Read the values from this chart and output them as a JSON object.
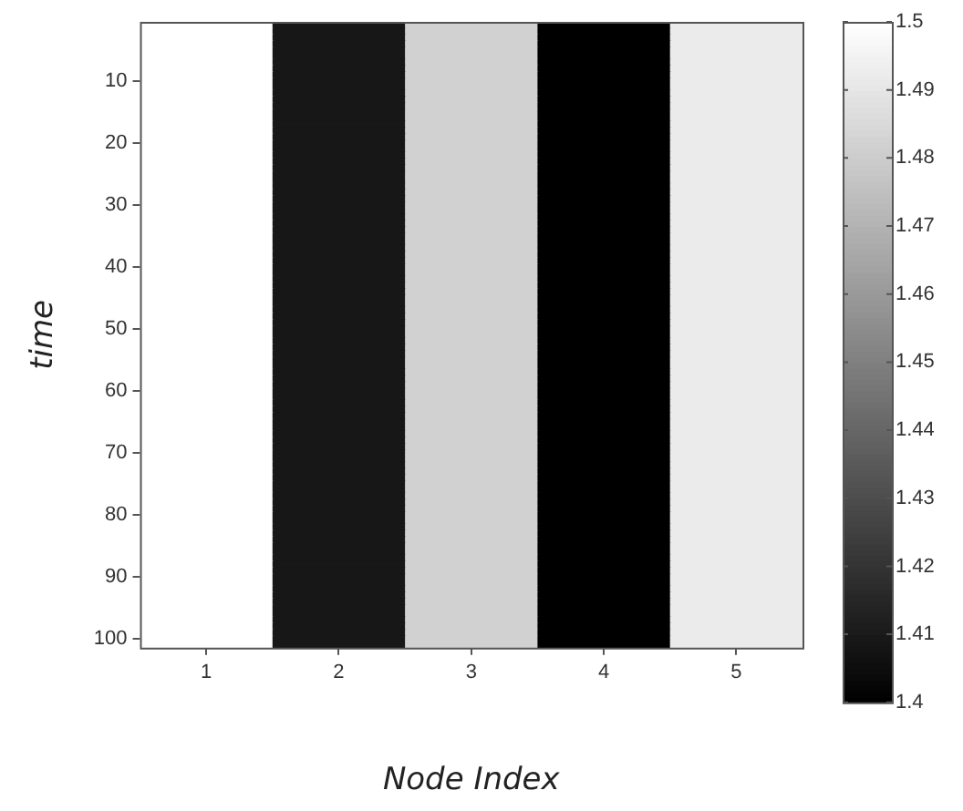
{
  "chart_data": {
    "type": "heatmap",
    "xlabel": "Node Index",
    "ylabel": "time",
    "categories": [
      "1",
      "2",
      "3",
      "4",
      "5"
    ],
    "y_categories": [
      null,
      null,
      null,
      null,
      null,
      null,
      null,
      null,
      null,
      "10",
      null,
      null,
      null,
      null,
      null,
      null,
      null,
      null,
      null,
      "20",
      null,
      null,
      null,
      null,
      null,
      null,
      null,
      null,
      null,
      "30",
      null,
      null,
      null,
      null,
      null,
      null,
      null,
      null,
      null,
      "40",
      null,
      null,
      null,
      null,
      null,
      null,
      null,
      null,
      null,
      "50",
      null,
      null,
      null,
      null,
      null,
      null,
      null,
      null,
      null,
      "60",
      null,
      null,
      null,
      null,
      null,
      null,
      null,
      null,
      null,
      "70",
      null,
      null,
      null,
      null,
      null,
      null,
      null,
      null,
      null,
      "80",
      null,
      null,
      null,
      null,
      null,
      null,
      null,
      null,
      null,
      "90",
      null,
      null,
      null,
      null,
      null,
      null,
      null,
      null,
      null,
      "100",
      null
    ],
    "clim": [
      1.4,
      1.5
    ],
    "cticks": [
      1.4,
      1.41,
      1.42,
      1.43,
      1.44,
      1.45,
      1.46,
      1.47,
      1.48,
      1.49,
      1.5
    ],
    "cells": [
      [
        1.5,
        1.409,
        1.482,
        1.4,
        1.492
      ],
      [
        1.5,
        1.409,
        1.482,
        1.4,
        1.492
      ],
      [
        1.5,
        1.409,
        1.482,
        1.4,
        1.492
      ],
      [
        1.5,
        1.409,
        1.482,
        1.4,
        1.492
      ],
      [
        1.5,
        1.409,
        1.482,
        1.4,
        1.492
      ],
      [
        1.5,
        1.409,
        1.482,
        1.4,
        1.492
      ],
      [
        1.5,
        1.409,
        1.482,
        1.4,
        1.492
      ],
      [
        1.5,
        1.409,
        1.482,
        1.4,
        1.492
      ],
      [
        1.5,
        1.409,
        1.482,
        1.4,
        1.492
      ],
      [
        1.5,
        1.409,
        1.482,
        1.4,
        1.492
      ],
      [
        1.5,
        1.409,
        1.482,
        1.4,
        1.492
      ],
      [
        1.5,
        1.409,
        1.482,
        1.4,
        1.492
      ],
      [
        1.5,
        1.409,
        1.482,
        1.4,
        1.492
      ],
      [
        1.5,
        1.409,
        1.482,
        1.4,
        1.492
      ],
      [
        1.5,
        1.409,
        1.482,
        1.4,
        1.492
      ],
      [
        1.5,
        1.409,
        1.482,
        1.4,
        1.492
      ],
      [
        1.5,
        1.409,
        1.482,
        1.4,
        1.492
      ],
      [
        1.5,
        1.409,
        1.482,
        1.4,
        1.492
      ],
      [
        1.5,
        1.409,
        1.482,
        1.4,
        1.492
      ],
      [
        1.5,
        1.409,
        1.482,
        1.4,
        1.492
      ],
      [
        1.5,
        1.409,
        1.482,
        1.4,
        1.492
      ],
      [
        1.5,
        1.409,
        1.482,
        1.4,
        1.492
      ],
      [
        1.5,
        1.409,
        1.482,
        1.4,
        1.492
      ],
      [
        1.5,
        1.409,
        1.482,
        1.4,
        1.492
      ],
      [
        1.5,
        1.409,
        1.482,
        1.4,
        1.492
      ],
      [
        1.5,
        1.409,
        1.482,
        1.4,
        1.492
      ],
      [
        1.5,
        1.409,
        1.482,
        1.4,
        1.492
      ],
      [
        1.5,
        1.409,
        1.482,
        1.4,
        1.492
      ],
      [
        1.5,
        1.409,
        1.482,
        1.4,
        1.492
      ],
      [
        1.5,
        1.409,
        1.482,
        1.4,
        1.492
      ],
      [
        1.5,
        1.409,
        1.482,
        1.4,
        1.492
      ],
      [
        1.5,
        1.409,
        1.482,
        1.4,
        1.492
      ],
      [
        1.5,
        1.409,
        1.482,
        1.4,
        1.492
      ],
      [
        1.5,
        1.409,
        1.482,
        1.4,
        1.492
      ],
      [
        1.5,
        1.409,
        1.482,
        1.4,
        1.492
      ],
      [
        1.5,
        1.409,
        1.482,
        1.4,
        1.492
      ],
      [
        1.5,
        1.409,
        1.482,
        1.4,
        1.492
      ],
      [
        1.5,
        1.409,
        1.482,
        1.4,
        1.492
      ],
      [
        1.5,
        1.409,
        1.482,
        1.4,
        1.492
      ],
      [
        1.5,
        1.409,
        1.482,
        1.4,
        1.492
      ],
      [
        1.5,
        1.409,
        1.482,
        1.4,
        1.492
      ],
      [
        1.5,
        1.409,
        1.482,
        1.4,
        1.492
      ],
      [
        1.5,
        1.409,
        1.482,
        1.4,
        1.492
      ],
      [
        1.5,
        1.409,
        1.482,
        1.4,
        1.492
      ],
      [
        1.5,
        1.409,
        1.482,
        1.4,
        1.492
      ],
      [
        1.5,
        1.409,
        1.482,
        1.4,
        1.492
      ],
      [
        1.5,
        1.409,
        1.482,
        1.4,
        1.492
      ],
      [
        1.5,
        1.409,
        1.482,
        1.4,
        1.492
      ],
      [
        1.5,
        1.409,
        1.482,
        1.4,
        1.492
      ],
      [
        1.5,
        1.409,
        1.482,
        1.4,
        1.492
      ],
      [
        1.5,
        1.409,
        1.482,
        1.4,
        1.492
      ],
      [
        1.5,
        1.409,
        1.482,
        1.4,
        1.492
      ],
      [
        1.5,
        1.409,
        1.482,
        1.4,
        1.492
      ],
      [
        1.5,
        1.409,
        1.482,
        1.4,
        1.492
      ],
      [
        1.5,
        1.409,
        1.482,
        1.4,
        1.492
      ],
      [
        1.5,
        1.409,
        1.482,
        1.4,
        1.492
      ],
      [
        1.5,
        1.409,
        1.482,
        1.4,
        1.492
      ],
      [
        1.5,
        1.409,
        1.482,
        1.4,
        1.492
      ],
      [
        1.5,
        1.409,
        1.482,
        1.4,
        1.492
      ],
      [
        1.5,
        1.409,
        1.482,
        1.4,
        1.492
      ],
      [
        1.5,
        1.409,
        1.482,
        1.4,
        1.492
      ],
      [
        1.5,
        1.409,
        1.482,
        1.4,
        1.492
      ],
      [
        1.5,
        1.409,
        1.482,
        1.4,
        1.492
      ],
      [
        1.5,
        1.409,
        1.482,
        1.4,
        1.492
      ],
      [
        1.5,
        1.409,
        1.482,
        1.4,
        1.492
      ],
      [
        1.5,
        1.409,
        1.482,
        1.4,
        1.492
      ],
      [
        1.5,
        1.409,
        1.482,
        1.4,
        1.492
      ],
      [
        1.5,
        1.409,
        1.482,
        1.4,
        1.492
      ],
      [
        1.5,
        1.409,
        1.482,
        1.4,
        1.492
      ],
      [
        1.5,
        1.409,
        1.482,
        1.4,
        1.492
      ],
      [
        1.5,
        1.409,
        1.482,
        1.4,
        1.492
      ],
      [
        1.5,
        1.409,
        1.482,
        1.4,
        1.492
      ],
      [
        1.5,
        1.409,
        1.482,
        1.4,
        1.492
      ],
      [
        1.5,
        1.409,
        1.482,
        1.4,
        1.492
      ],
      [
        1.5,
        1.409,
        1.482,
        1.4,
        1.492
      ],
      [
        1.5,
        1.409,
        1.482,
        1.4,
        1.492
      ],
      [
        1.5,
        1.409,
        1.482,
        1.4,
        1.492
      ],
      [
        1.5,
        1.409,
        1.482,
        1.4,
        1.492
      ],
      [
        1.5,
        1.409,
        1.482,
        1.4,
        1.492
      ],
      [
        1.5,
        1.409,
        1.482,
        1.4,
        1.492
      ],
      [
        1.5,
        1.409,
        1.482,
        1.4,
        1.492
      ],
      [
        1.5,
        1.409,
        1.482,
        1.4,
        1.492
      ],
      [
        1.5,
        1.409,
        1.482,
        1.4,
        1.492
      ],
      [
        1.5,
        1.409,
        1.482,
        1.4,
        1.492
      ],
      [
        1.5,
        1.409,
        1.482,
        1.4,
        1.492
      ],
      [
        1.5,
        1.409,
        1.482,
        1.4,
        1.492
      ],
      [
        1.5,
        1.409,
        1.482,
        1.4,
        1.492
      ],
      [
        1.5,
        1.409,
        1.482,
        1.4,
        1.492
      ],
      [
        1.5,
        1.409,
        1.482,
        1.4,
        1.492
      ],
      [
        1.5,
        1.409,
        1.482,
        1.4,
        1.492
      ],
      [
        1.5,
        1.409,
        1.482,
        1.4,
        1.492
      ],
      [
        1.5,
        1.409,
        1.482,
        1.4,
        1.492
      ],
      [
        1.5,
        1.409,
        1.482,
        1.4,
        1.492
      ],
      [
        1.5,
        1.409,
        1.482,
        1.4,
        1.492
      ],
      [
        1.5,
        1.409,
        1.482,
        1.4,
        1.492
      ],
      [
        1.5,
        1.409,
        1.482,
        1.4,
        1.492
      ],
      [
        1.5,
        1.409,
        1.482,
        1.4,
        1.492
      ],
      [
        1.5,
        1.409,
        1.482,
        1.4,
        1.492
      ],
      [
        1.5,
        1.409,
        1.482,
        1.4,
        1.492
      ],
      [
        1.5,
        1.409,
        1.482,
        1.4,
        1.492
      ],
      [
        1.5,
        1.409,
        1.482,
        1.4,
        1.492
      ]
    ]
  }
}
